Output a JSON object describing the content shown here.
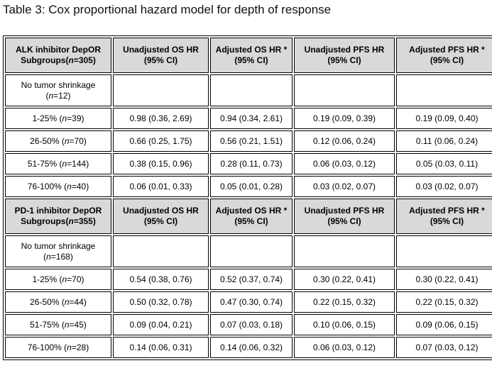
{
  "title": "Table 3: Cox proportional hazard model for depth of response",
  "sections": [
    {
      "header": [
        "ALK inhibitor DepOR Subgroups(n=305)",
        "Unadjusted OS HR (95% CI)",
        "Adjusted OS HR *(95% CI)",
        "Unadjusted PFS HR (95% CI)",
        "Adjusted PFS HR *(95% CI)"
      ],
      "rows": [
        [
          "No tumor shrinkage (n=12)"
        ],
        [
          "1-25% (n=39)",
          "0.98 (0.36, 2.69)",
          "0.94 (0.34, 2.61)",
          "0.19 (0.09, 0.39)",
          "0.19 (0.09, 0.40)"
        ],
        [
          "26-50% (n=70)",
          "0.66 (0.25, 1.75)",
          "0.56 (0.21, 1.51)",
          "0.12 (0.06, 0.24)",
          "0.11 (0.06, 0.24)"
        ],
        [
          "51-75% (n=144)",
          "0.38 (0.15, 0.96)",
          "0.28 (0.11, 0.73)",
          "0.06 (0.03, 0.12)",
          "0.05 (0.03, 0.11)"
        ],
        [
          "76-100% (n=40)",
          "0.06 (0.01, 0.33)",
          "0.05 (0.01, 0.28)",
          "0.03 (0.02, 0.07)",
          "0.03 (0.02, 0.07)"
        ]
      ]
    },
    {
      "header": [
        "PD-1 inhibitor DepOR Subgroups(n=355)",
        "Unadjusted OS HR (95% CI)",
        "Adjusted OS HR *(95% CI)",
        "Unadjusted PFS HR (95% CI)",
        "Adjusted PFS HR *(95% CI)"
      ],
      "rows": [
        [
          "No tumor shrinkage (n=168)"
        ],
        [
          "1-25% (n=70)",
          "0.54 (0.38, 0.76)",
          "0.52 (0.37, 0.74)",
          "0.30 (0.22, 0.41)",
          "0.30 (0.22, 0.41)"
        ],
        [
          "26-50% (n=44)",
          "0.50 (0.32, 0.78)",
          "0.47 (0.30, 0.74)",
          "0.22 (0.15, 0.32)",
          "0.22 (0.15, 0.32)"
        ],
        [
          "51-75% (n=45)",
          "0.09 (0.04, 0.21)",
          "0.07 (0.03, 0.18)",
          "0.10 (0.06, 0.15)",
          "0.09 (0.06, 0.15)"
        ],
        [
          "76-100% (n=28)",
          "0.14 (0.06, 0.31)",
          "0.14 (0.06, 0.32)",
          "0.06 (0.03, 0.12)",
          "0.07 (0.03, 0.12)"
        ]
      ]
    }
  ]
}
